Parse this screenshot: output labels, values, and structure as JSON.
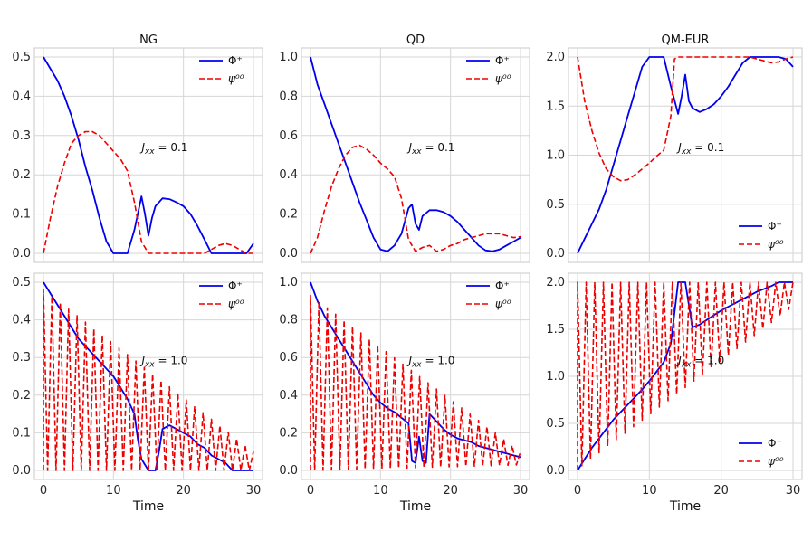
{
  "xlabel": "Time",
  "colors": {
    "phi": "#0000ee",
    "psi": "#ee0000",
    "grid": "#d6d6d6",
    "frame": "#c8c8c8"
  },
  "legend_labels": {
    "phi": "Φ⁺",
    "psi": "ψ⁰⁰"
  },
  "chart_data": [
    {
      "type": "line",
      "title": "NG",
      "annotation": "J_xx = 0.1",
      "xlim": [
        0,
        30
      ],
      "ylim": [
        0,
        0.5
      ],
      "xticks": [
        "0",
        "10",
        "20",
        "30"
      ],
      "yticks": [
        "0.0",
        "0.1",
        "0.2",
        "0.3",
        "0.4",
        "0.5"
      ],
      "legend_position": "top-right",
      "series": [
        {
          "name": "Φ⁺",
          "style": "solid",
          "x": [
            0,
            1,
            2,
            3,
            4,
            5,
            6,
            7,
            8,
            9,
            10,
            11,
            12,
            13,
            14,
            14.5,
            15,
            15.5,
            16,
            17,
            18,
            19,
            20,
            21,
            22,
            23,
            24,
            25,
            26,
            27,
            28,
            29,
            30
          ],
          "y": [
            0.5,
            0.47,
            0.44,
            0.4,
            0.35,
            0.29,
            0.22,
            0.16,
            0.09,
            0.03,
            0.0,
            0.0,
            0.0,
            0.06,
            0.145,
            0.1,
            0.045,
            0.09,
            0.12,
            0.14,
            0.138,
            0.13,
            0.12,
            0.1,
            0.07,
            0.035,
            0.0,
            0.0,
            0.0,
            0.0,
            0.0,
            0.0,
            0.025
          ]
        },
        {
          "name": "ψ⁰⁰",
          "style": "dashed",
          "x": [
            0,
            1,
            2,
            3,
            4,
            5,
            6,
            7,
            8,
            9,
            10,
            11,
            12,
            13,
            14,
            15,
            16,
            17,
            18,
            19,
            20,
            21,
            22,
            23,
            24,
            25,
            26,
            27,
            28,
            29,
            30
          ],
          "y": [
            0.0,
            0.09,
            0.17,
            0.23,
            0.28,
            0.3,
            0.31,
            0.31,
            0.3,
            0.28,
            0.26,
            0.24,
            0.21,
            0.13,
            0.03,
            0.0,
            0.0,
            0.0,
            0.0,
            0.0,
            0.0,
            0.0,
            0.0,
            0.0,
            0.01,
            0.02,
            0.025,
            0.02,
            0.01,
            0.0,
            0.0
          ]
        }
      ]
    },
    {
      "type": "line",
      "title": "QD",
      "annotation": "J_xx = 0.1",
      "xlim": [
        0,
        30
      ],
      "ylim": [
        0,
        1.0
      ],
      "xticks": [
        "0",
        "10",
        "20",
        "30"
      ],
      "yticks": [
        "0.0",
        "0.2",
        "0.4",
        "0.6",
        "0.8",
        "1.0"
      ],
      "legend_position": "top-right",
      "series": [
        {
          "name": "Φ⁺",
          "style": "solid",
          "x": [
            0,
            1,
            2,
            3,
            4,
            5,
            6,
            7,
            8,
            9,
            10,
            11,
            12,
            13,
            14,
            14.5,
            15,
            15.5,
            16,
            17,
            18,
            19,
            20,
            21,
            22,
            23,
            24,
            25,
            26,
            27,
            28,
            29,
            30
          ],
          "y": [
            1.0,
            0.86,
            0.76,
            0.66,
            0.56,
            0.46,
            0.36,
            0.26,
            0.17,
            0.08,
            0.02,
            0.01,
            0.04,
            0.1,
            0.23,
            0.25,
            0.15,
            0.12,
            0.19,
            0.22,
            0.22,
            0.21,
            0.19,
            0.16,
            0.12,
            0.08,
            0.04,
            0.015,
            0.01,
            0.02,
            0.04,
            0.06,
            0.08
          ]
        },
        {
          "name": "ψ⁰⁰",
          "style": "dashed",
          "x": [
            0,
            1,
            2,
            3,
            4,
            5,
            6,
            7,
            8,
            9,
            10,
            11,
            12,
            13,
            14,
            14.5,
            15,
            16,
            17,
            18,
            19,
            20,
            21,
            22,
            23,
            24,
            25,
            26,
            27,
            28,
            29,
            30
          ],
          "y": [
            0.0,
            0.08,
            0.22,
            0.34,
            0.43,
            0.5,
            0.54,
            0.55,
            0.53,
            0.5,
            0.46,
            0.43,
            0.39,
            0.28,
            0.07,
            0.04,
            0.01,
            0.03,
            0.04,
            0.01,
            0.02,
            0.04,
            0.05,
            0.07,
            0.08,
            0.09,
            0.1,
            0.1,
            0.1,
            0.09,
            0.08,
            0.085
          ]
        }
      ]
    },
    {
      "type": "line",
      "title": "QM-EUR",
      "annotation": "J_xx = 0.1",
      "xlim": [
        0,
        30
      ],
      "ylim": [
        0,
        2.0
      ],
      "xticks": [
        "0",
        "10",
        "20",
        "30"
      ],
      "yticks": [
        "0.0",
        "0.5",
        "1.0",
        "1.5",
        "2.0"
      ],
      "legend_position": "bottom-right",
      "series": [
        {
          "name": "Φ⁺",
          "style": "solid",
          "x": [
            0,
            1,
            2,
            3,
            4,
            5,
            6,
            7,
            8,
            9,
            10,
            11,
            12,
            13,
            14,
            14.5,
            15,
            15.5,
            16,
            17,
            18,
            19,
            20,
            21,
            22,
            23,
            24,
            25,
            26,
            27,
            28,
            29,
            30
          ],
          "y": [
            0.0,
            0.15,
            0.3,
            0.45,
            0.65,
            0.9,
            1.15,
            1.4,
            1.65,
            1.9,
            2.0,
            2.0,
            2.0,
            1.7,
            1.42,
            1.6,
            1.82,
            1.55,
            1.48,
            1.44,
            1.47,
            1.52,
            1.6,
            1.7,
            1.82,
            1.94,
            2.0,
            2.0,
            2.0,
            2.0,
            2.0,
            1.98,
            1.9
          ]
        },
        {
          "name": "ψ⁰⁰",
          "style": "dashed",
          "x": [
            0,
            1,
            2,
            3,
            4,
            5,
            6,
            7,
            8,
            9,
            10,
            11,
            12,
            13,
            13.5,
            14,
            15,
            16,
            17,
            18,
            19,
            20,
            21,
            22,
            23,
            24,
            25,
            26,
            27,
            28,
            29,
            30
          ],
          "y": [
            2.0,
            1.55,
            1.25,
            1.02,
            0.86,
            0.78,
            0.74,
            0.75,
            0.8,
            0.86,
            0.92,
            0.99,
            1.05,
            1.4,
            1.98,
            2.0,
            2.0,
            2.0,
            2.0,
            2.0,
            2.0,
            2.0,
            2.0,
            2.0,
            2.0,
            2.0,
            1.98,
            1.96,
            1.94,
            1.95,
            1.98,
            2.0
          ]
        }
      ]
    },
    {
      "type": "line",
      "title": "",
      "annotation": "J_xx = 1.0",
      "xlim": [
        0,
        30
      ],
      "ylim": [
        0,
        0.5
      ],
      "xticks": [
        "0",
        "10",
        "20",
        "30"
      ],
      "yticks": [
        "0.0",
        "0.1",
        "0.2",
        "0.3",
        "0.4",
        "0.5"
      ],
      "legend_position": "top-right",
      "series": [
        {
          "name": "Φ⁺",
          "style": "solid",
          "x": [
            0,
            1,
            2,
            3,
            4,
            5,
            6,
            7,
            8,
            9,
            10,
            11,
            12,
            13,
            13.5,
            14,
            15,
            16,
            16.5,
            17,
            18,
            19,
            20,
            21,
            22,
            23,
            24,
            25,
            26,
            27,
            28,
            29,
            30
          ],
          "y": [
            0.5,
            0.47,
            0.44,
            0.41,
            0.38,
            0.35,
            0.33,
            0.31,
            0.29,
            0.27,
            0.25,
            0.22,
            0.19,
            0.15,
            0.08,
            0.03,
            0.0,
            0.0,
            0.05,
            0.11,
            0.12,
            0.11,
            0.1,
            0.09,
            0.07,
            0.06,
            0.04,
            0.03,
            0.02,
            0.0,
            0.0,
            0.0,
            0.0
          ]
        },
        {
          "name": "ψ⁰⁰",
          "style": "dashed",
          "x": [],
          "y": [],
          "generator": {
            "amplitude_start": 0.48,
            "amplitude_end": 0.05,
            "min_start": 0.0,
            "min_end": 0.0,
            "period": 1.2
          }
        }
      ]
    },
    {
      "type": "line",
      "title": "",
      "annotation": "J_xx = 1.0",
      "xlim": [
        0,
        30
      ],
      "ylim": [
        0,
        1.0
      ],
      "xticks": [
        "0",
        "10",
        "20",
        "30"
      ],
      "yticks": [
        "0.0",
        "0.2",
        "0.4",
        "0.6",
        "0.8",
        "1.0"
      ],
      "legend_position": "top-right",
      "series": [
        {
          "name": "Φ⁺",
          "style": "solid",
          "x": [
            0,
            1,
            2,
            3,
            4,
            5,
            6,
            7,
            8,
            9,
            10,
            11,
            12,
            13,
            14,
            14.5,
            15,
            15.5,
            16,
            16.5,
            17,
            18,
            19,
            20,
            21,
            22,
            23,
            24,
            25,
            26,
            27,
            28,
            29,
            30
          ],
          "y": [
            1.0,
            0.9,
            0.82,
            0.76,
            0.7,
            0.64,
            0.58,
            0.52,
            0.46,
            0.4,
            0.36,
            0.33,
            0.31,
            0.28,
            0.25,
            0.05,
            0.04,
            0.18,
            0.05,
            0.04,
            0.3,
            0.26,
            0.22,
            0.19,
            0.17,
            0.16,
            0.15,
            0.13,
            0.12,
            0.11,
            0.1,
            0.09,
            0.08,
            0.07
          ]
        },
        {
          "name": "ψ⁰⁰",
          "style": "dashed",
          "x": [],
          "y": [],
          "generator": {
            "amplitude_start": 0.93,
            "amplitude_end": 0.1,
            "min_start": 0.0,
            "min_end": 0.03,
            "period": 1.2
          }
        }
      ]
    },
    {
      "type": "line",
      "title": "",
      "annotation": "J_xx = 1.0",
      "xlim": [
        0,
        30
      ],
      "ylim": [
        0,
        2.0
      ],
      "xticks": [
        "0",
        "10",
        "20",
        "30"
      ],
      "yticks": [
        "0.0",
        "0.5",
        "1.0",
        "1.5",
        "2.0"
      ],
      "legend_position": "bottom-right",
      "series": [
        {
          "name": "Φ⁺",
          "style": "solid",
          "x": [
            0,
            1,
            2,
            3,
            4,
            5,
            6,
            7,
            8,
            9,
            10,
            11,
            12,
            13,
            14,
            15,
            16,
            17,
            18,
            19,
            20,
            21,
            22,
            23,
            24,
            25,
            26,
            27,
            28,
            29,
            30
          ],
          "y": [
            0.0,
            0.12,
            0.24,
            0.34,
            0.44,
            0.54,
            0.62,
            0.7,
            0.78,
            0.86,
            0.95,
            1.05,
            1.15,
            1.35,
            2.0,
            2.0,
            1.52,
            1.55,
            1.6,
            1.65,
            1.7,
            1.74,
            1.78,
            1.82,
            1.86,
            1.9,
            1.93,
            1.96,
            2.0,
            2.0,
            2.0
          ]
        },
        {
          "name": "ψ⁰⁰",
          "style": "dashed",
          "x": [],
          "y": [],
          "generator": {
            "amplitude_start": 2.0,
            "amplitude_end": 2.0,
            "min_start": 0.05,
            "min_end": 1.78,
            "period": 1.2
          }
        }
      ]
    }
  ]
}
